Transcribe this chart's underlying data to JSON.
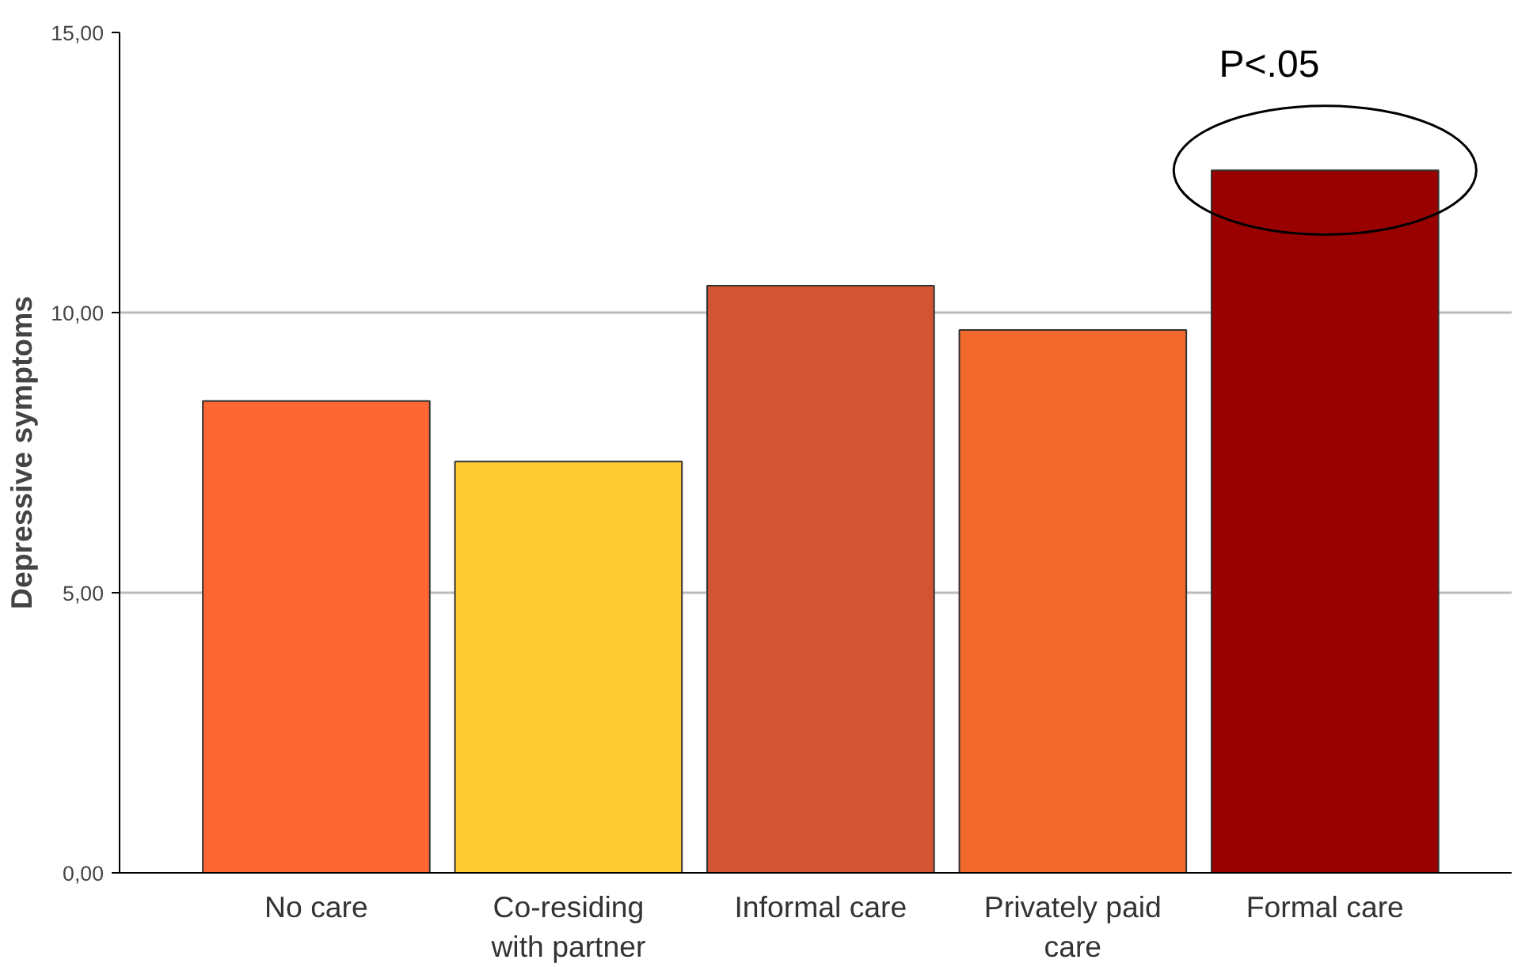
{
  "chart_data": {
    "type": "bar",
    "ylabel": "Depressive symptoms",
    "categories": [
      "No care",
      "Co-residing with partner",
      "Informal care",
      "Privately paid care",
      "Formal care"
    ],
    "values": [
      8.42,
      7.34,
      10.48,
      9.69,
      12.54
    ],
    "colors": [
      "#fe6633",
      "#fecb33",
      "#d25433",
      "#f2692c",
      "#990000"
    ],
    "ylim": [
      0,
      15
    ],
    "yticks": [
      {
        "value": 0,
        "label": "0,00"
      },
      {
        "value": 5,
        "label": "5,00"
      },
      {
        "value": 10,
        "label": "10,00"
      },
      {
        "value": 15,
        "label": "15,00"
      }
    ],
    "grid": "y",
    "annotations": [
      {
        "text": "P<.05",
        "x": "Formal care",
        "y": 12.54
      }
    ]
  }
}
